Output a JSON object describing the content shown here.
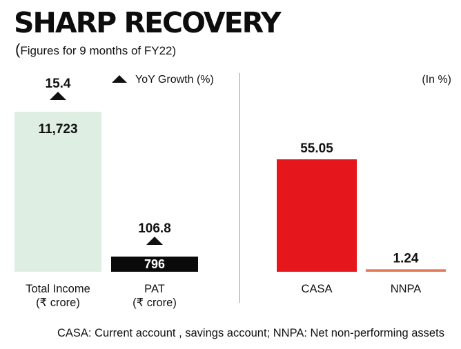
{
  "header": {
    "title": "SHARP RECOVERY",
    "subtitle_open": "(",
    "subtitle": "Figures for 9 months of FY22)"
  },
  "legend": {
    "label": "YoY Growth (%)"
  },
  "right_unit": "(In %)",
  "footnote": "CASA: Current account , savings account; NNPA: Net non-performing assets",
  "colors": {
    "total_income_bar": "#dfeee3",
    "pat_bar": "#0a0a0a",
    "casa_bar": "#e5161c",
    "nnpa_bar": "#e8785a",
    "divider": "#e47a72",
    "growth_marker": "#111111"
  },
  "chart_data": [
    {
      "type": "bar",
      "title": "",
      "unit": "₹ crore",
      "categories": [
        "Total Income\n(₹ crore)",
        "PAT\n(₹ crore)"
      ],
      "values": [
        11723,
        796
      ],
      "value_labels": [
        "11,723",
        "796"
      ],
      "yoy_growth_pct": [
        15.4,
        106.8
      ],
      "yoy_growth_labels": [
        "15.4",
        "106.8"
      ],
      "growth_series_name": "YoY Growth (%)"
    },
    {
      "type": "bar",
      "title": "",
      "unit": "%",
      "categories": [
        "CASA",
        "NNPA"
      ],
      "values": [
        55.05,
        1.24
      ],
      "value_labels": [
        "55.05",
        "1.24"
      ]
    }
  ]
}
